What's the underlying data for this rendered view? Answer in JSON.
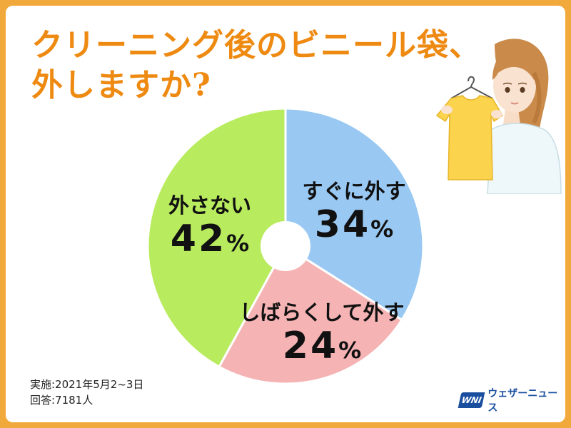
{
  "title": {
    "line1": "クリーニング後のビニール袋、",
    "line2": "外しますか?"
  },
  "colors": {
    "title": "#ee8a12",
    "border": "#f2a93b",
    "brand": "#1a4fa0"
  },
  "chart_data": {
    "type": "pie",
    "donut": true,
    "categories": [
      "すぐに外す",
      "しばらくして外す",
      "外さない"
    ],
    "values": [
      34,
      24,
      42
    ],
    "value_labels": [
      "34",
      "24",
      "42"
    ],
    "unit": "%",
    "colors": [
      "#99c8f2",
      "#f5b3b4",
      "#b8eb5e"
    ],
    "start_angle": "12 o'clock",
    "direction": "clockwise"
  },
  "footnote": {
    "date": "実施:2021年5月2~3日",
    "respondents": "回答:7181人"
  },
  "brand": {
    "logo": "WNI",
    "name": "ウェザーニュース"
  }
}
